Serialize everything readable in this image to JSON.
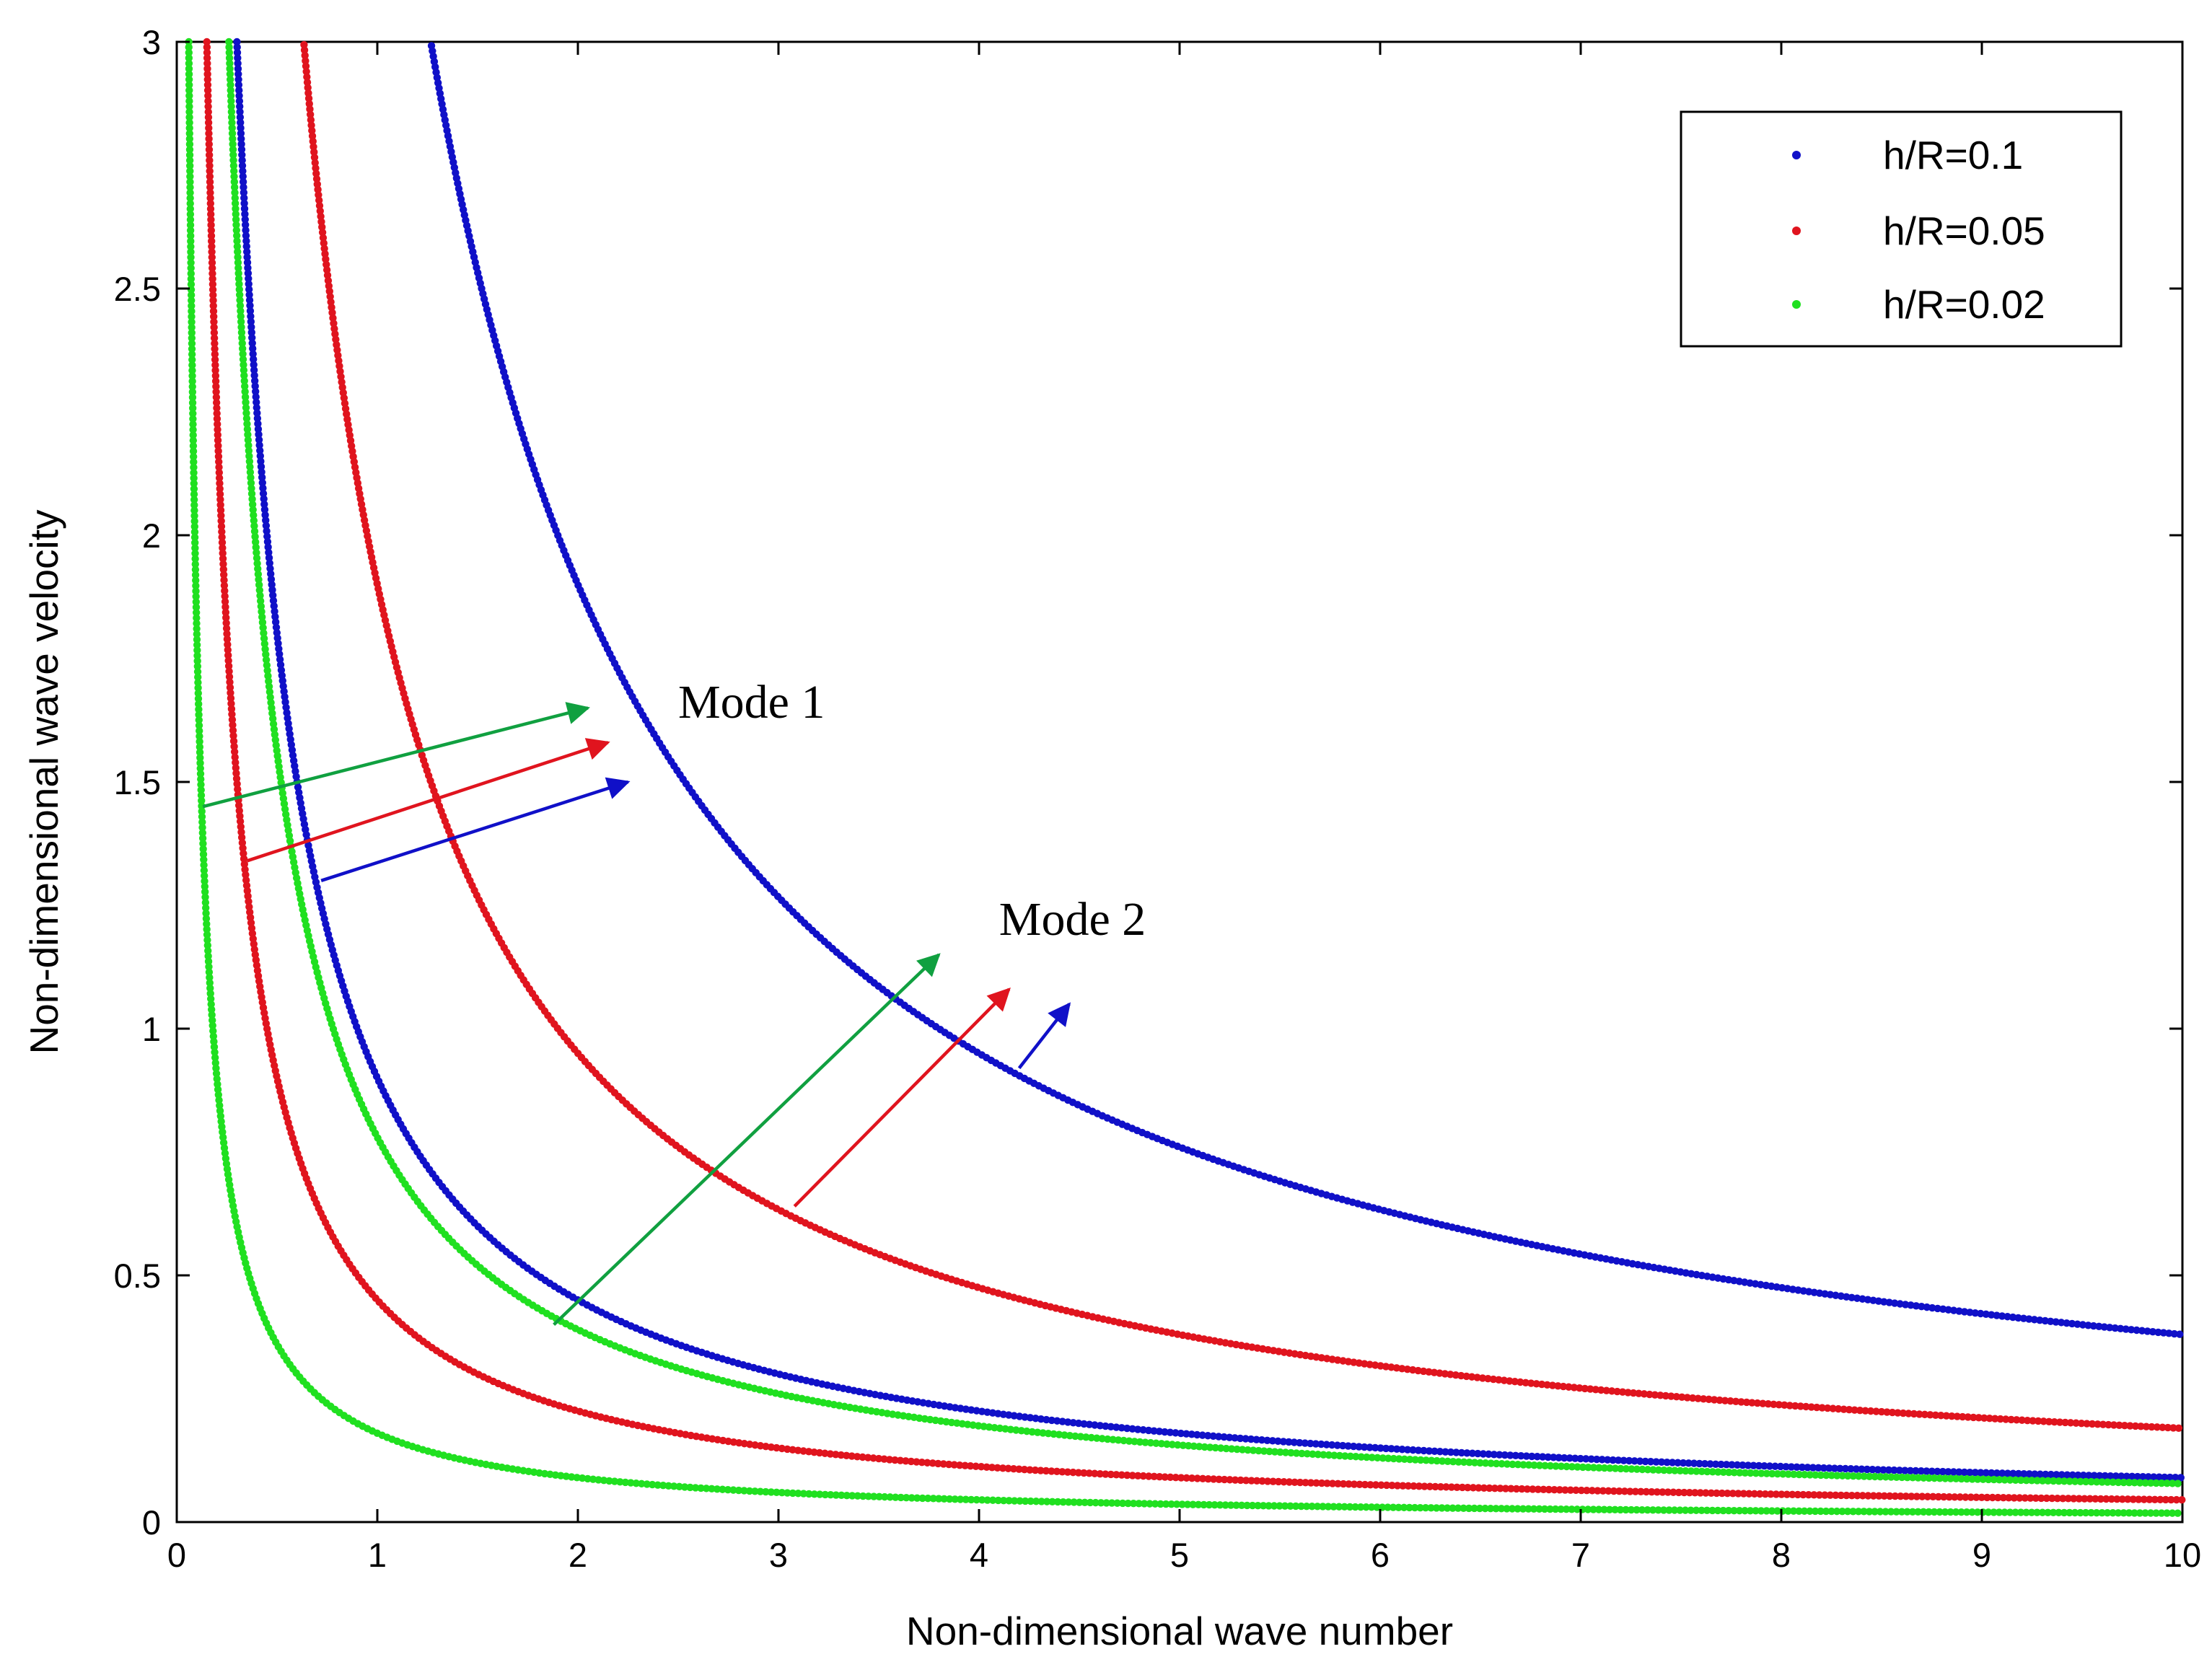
{
  "chart_data": {
    "type": "scatter",
    "title": "",
    "xlabel": "Non-dimensional wave number",
    "ylabel": "Non-dimensional wave velocity",
    "xlim": [
      0,
      10
    ],
    "ylim": [
      0,
      3
    ],
    "xticks": [
      0,
      1,
      2,
      3,
      4,
      5,
      6,
      7,
      8,
      9,
      10
    ],
    "yticks": [
      0,
      0.5,
      1,
      1.5,
      2,
      2.5,
      3
    ],
    "ytick_labels": [
      "0",
      "0.5",
      "1",
      "1.5",
      "2",
      "2.5",
      "3"
    ],
    "legend_position": "top-right",
    "series": [
      {
        "name": "h/R=0.1",
        "color": "#1010c8",
        "modes": [
          {
            "mode": 1,
            "C": 3.8,
            "x_start": 1.27,
            "x_end": 10
          },
          {
            "mode": 2,
            "C": 0.9,
            "x_start": 0.3,
            "x_end": 10
          }
        ]
      },
      {
        "name": "h/R=0.05",
        "color": "#e0141e",
        "modes": [
          {
            "mode": 1,
            "C": 1.9,
            "x_start": 0.63,
            "x_end": 10
          },
          {
            "mode": 2,
            "C": 0.45,
            "x_start": 0.15,
            "x_end": 10
          }
        ]
      },
      {
        "name": "h/R=0.02",
        "color": "#20e020",
        "modes": [
          {
            "mode": 1,
            "C": 0.78,
            "x_start": 0.26,
            "x_end": 10
          },
          {
            "mode": 2,
            "C": 0.18,
            "x_start": 0.06,
            "x_end": 10
          }
        ]
      }
    ],
    "annotations": [
      {
        "text": "Mode 1",
        "x": 2.5,
        "y": 1.63
      },
      {
        "text": "Mode 2",
        "x": 4.1,
        "y": 1.19
      }
    ],
    "arrows": [
      {
        "group": "Mode 1",
        "color": "#10a040",
        "from": [
          0.13,
          1.45
        ],
        "to": [
          2.05,
          1.65
        ]
      },
      {
        "group": "Mode 1",
        "color": "#e0141e",
        "from": [
          0.35,
          1.34
        ],
        "to": [
          2.15,
          1.58
        ]
      },
      {
        "group": "Mode 1",
        "color": "#1010c8",
        "from": [
          0.72,
          1.3
        ],
        "to": [
          2.25,
          1.5
        ]
      },
      {
        "group": "Mode 2",
        "color": "#10a040",
        "from": [
          1.88,
          0.4
        ],
        "to": [
          3.8,
          1.15
        ]
      },
      {
        "group": "Mode 2",
        "color": "#e0141e",
        "from": [
          3.08,
          0.64
        ],
        "to": [
          4.15,
          1.08
        ]
      },
      {
        "group": "Mode 2",
        "color": "#1010c8",
        "from": [
          4.2,
          0.92
        ],
        "to": [
          4.45,
          1.05
        ]
      }
    ]
  }
}
